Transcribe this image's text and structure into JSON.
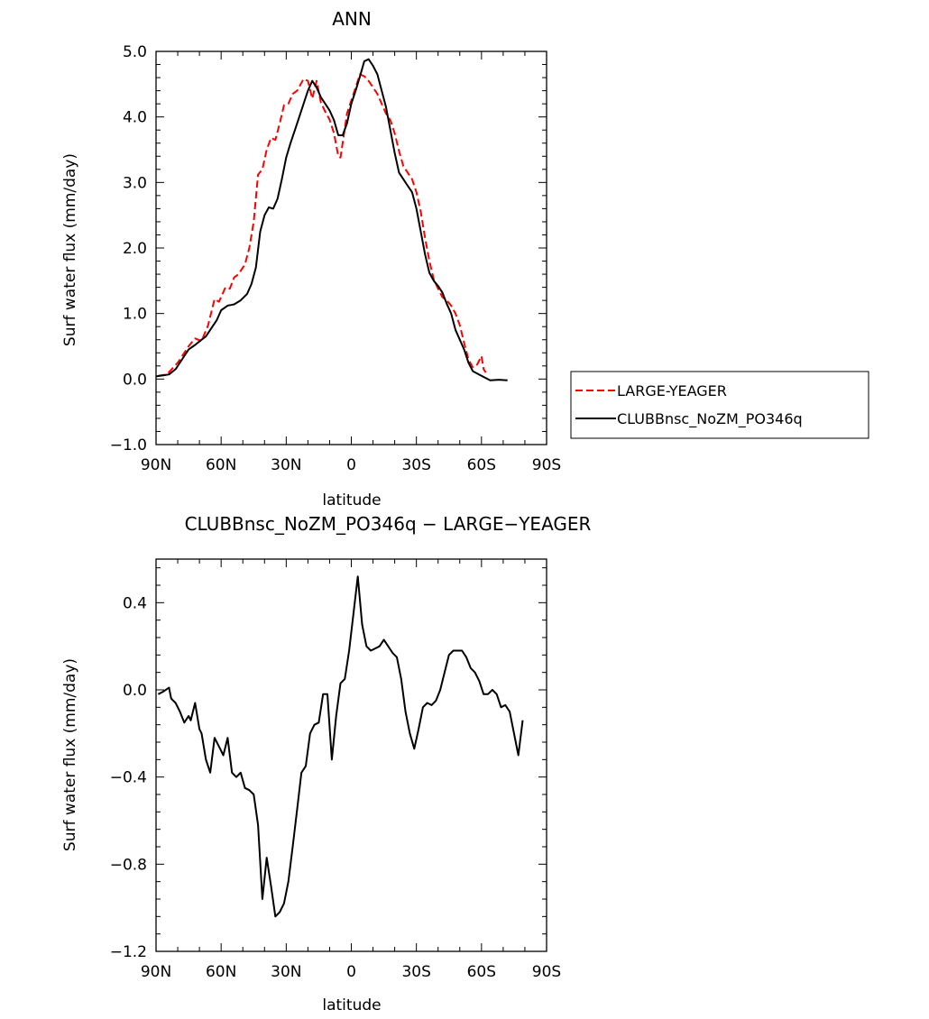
{
  "chart_data": [
    {
      "type": "line",
      "title": "ANN",
      "xlabel": "latitude",
      "ylabel": "Surf water flux (mm/day)",
      "xlim": [
        90,
        -90
      ],
      "ylim": [
        -1.0,
        5.0
      ],
      "xticks": [
        {
          "v": 90,
          "label": "90N"
        },
        {
          "v": 60,
          "label": "60N"
        },
        {
          "v": 30,
          "label": "30N"
        },
        {
          "v": 0,
          "label": "0"
        },
        {
          "v": -30,
          "label": "30S"
        },
        {
          "v": -60,
          "label": "60S"
        },
        {
          "v": -90,
          "label": "90S"
        }
      ],
      "yticks": [
        {
          "v": 5.0,
          "label": "5.0"
        },
        {
          "v": 4.0,
          "label": "4.0"
        },
        {
          "v": 3.0,
          "label": "3.0"
        },
        {
          "v": 2.0,
          "label": "2.0"
        },
        {
          "v": 1.0,
          "label": "1.0"
        },
        {
          "v": 0.0,
          "label": "0.0"
        },
        {
          "v": -1.0,
          "label": "−1.0"
        }
      ],
      "legend_position": "right",
      "series": [
        {
          "name": "LARGE-YEAGER",
          "color": "#ff0000",
          "dash": "dashed",
          "points": [
            [
              89,
              0.05
            ],
            [
              85,
              0.07
            ],
            [
              80,
              0.25
            ],
            [
              75,
              0.5
            ],
            [
              72,
              0.62
            ],
            [
              69,
              0.58
            ],
            [
              66,
              0.82
            ],
            [
              63,
              1.22
            ],
            [
              61,
              1.18
            ],
            [
              58,
              1.4
            ],
            [
              56,
              1.38
            ],
            [
              54,
              1.55
            ],
            [
              52,
              1.6
            ],
            [
              49,
              1.75
            ],
            [
              47,
              2.0
            ],
            [
              45,
              2.4
            ],
            [
              43,
              3.12
            ],
            [
              41,
              3.2
            ],
            [
              39,
              3.5
            ],
            [
              37,
              3.68
            ],
            [
              35,
              3.65
            ],
            [
              33,
              3.9
            ],
            [
              31,
              4.18
            ],
            [
              29,
              4.2
            ],
            [
              27,
              4.35
            ],
            [
              25,
              4.4
            ],
            [
              22,
              4.58
            ],
            [
              20,
              4.55
            ],
            [
              18,
              4.28
            ],
            [
              16,
              4.55
            ],
            [
              14,
              4.22
            ],
            [
              12,
              4.08
            ],
            [
              10,
              3.96
            ],
            [
              8,
              3.75
            ],
            [
              6,
              3.4
            ],
            [
              5,
              3.38
            ],
            [
              4,
              3.6
            ],
            [
              2,
              4.05
            ],
            [
              0,
              4.25
            ],
            [
              -2,
              4.45
            ],
            [
              -4,
              4.65
            ],
            [
              -6,
              4.62
            ],
            [
              -8,
              4.55
            ],
            [
              -10,
              4.45
            ],
            [
              -12,
              4.35
            ],
            [
              -14,
              4.2
            ],
            [
              -16,
              4.05
            ],
            [
              -18,
              3.95
            ],
            [
              -20,
              3.75
            ],
            [
              -22,
              3.48
            ],
            [
              -24,
              3.25
            ],
            [
              -26,
              3.15
            ],
            [
              -28,
              3.05
            ],
            [
              -30,
              2.85
            ],
            [
              -32,
              2.55
            ],
            [
              -34,
              2.15
            ],
            [
              -36,
              1.8
            ],
            [
              -38,
              1.52
            ],
            [
              -40,
              1.38
            ],
            [
              -42,
              1.25
            ],
            [
              -44,
              1.2
            ],
            [
              -46,
              1.12
            ],
            [
              -48,
              1.0
            ],
            [
              -50,
              0.82
            ],
            [
              -52,
              0.55
            ],
            [
              -54,
              0.3
            ],
            [
              -56,
              0.18
            ],
            [
              -58,
              0.22
            ],
            [
              -60,
              0.35
            ],
            [
              -61,
              0.15
            ],
            [
              -62,
              0.1
            ]
          ]
        },
        {
          "name": "CLUBBnsc_NoZM_PO346q",
          "color": "#000000",
          "dash": "solid",
          "points": [
            [
              90,
              0.04
            ],
            [
              86,
              0.06
            ],
            [
              84,
              0.07
            ],
            [
              81,
              0.15
            ],
            [
              78,
              0.3
            ],
            [
              75,
              0.45
            ],
            [
              72,
              0.52
            ],
            [
              69,
              0.6
            ],
            [
              67,
              0.65
            ],
            [
              64,
              0.8
            ],
            [
              62,
              0.9
            ],
            [
              60,
              1.05
            ],
            [
              57,
              1.12
            ],
            [
              54,
              1.14
            ],
            [
              51,
              1.2
            ],
            [
              48,
              1.3
            ],
            [
              46,
              1.45
            ],
            [
              44,
              1.7
            ],
            [
              42,
              2.25
            ],
            [
              40,
              2.5
            ],
            [
              38,
              2.62
            ],
            [
              36,
              2.6
            ],
            [
              34,
              2.75
            ],
            [
              32,
              3.05
            ],
            [
              30,
              3.38
            ],
            [
              28,
              3.6
            ],
            [
              26,
              3.8
            ],
            [
              24,
              4.0
            ],
            [
              22,
              4.2
            ],
            [
              20,
              4.4
            ],
            [
              18,
              4.55
            ],
            [
              16,
              4.45
            ],
            [
              14,
              4.3
            ],
            [
              12,
              4.2
            ],
            [
              10,
              4.1
            ],
            [
              8,
              3.95
            ],
            [
              6,
              3.72
            ],
            [
              4,
              3.72
            ],
            [
              2,
              3.9
            ],
            [
              0,
              4.2
            ],
            [
              -2,
              4.4
            ],
            [
              -4,
              4.62
            ],
            [
              -6,
              4.85
            ],
            [
              -8,
              4.88
            ],
            [
              -10,
              4.78
            ],
            [
              -12,
              4.65
            ],
            [
              -14,
              4.4
            ],
            [
              -16,
              4.15
            ],
            [
              -18,
              3.8
            ],
            [
              -20,
              3.45
            ],
            [
              -22,
              3.15
            ],
            [
              -24,
              3.05
            ],
            [
              -26,
              2.95
            ],
            [
              -28,
              2.85
            ],
            [
              -30,
              2.6
            ],
            [
              -32,
              2.25
            ],
            [
              -34,
              1.9
            ],
            [
              -36,
              1.62
            ],
            [
              -38,
              1.5
            ],
            [
              -40,
              1.42
            ],
            [
              -42,
              1.32
            ],
            [
              -44,
              1.15
            ],
            [
              -46,
              1.0
            ],
            [
              -48,
              0.75
            ],
            [
              -50,
              0.6
            ],
            [
              -52,
              0.45
            ],
            [
              -54,
              0.25
            ],
            [
              -56,
              0.12
            ],
            [
              -60,
              0.05
            ],
            [
              -64,
              -0.02
            ],
            [
              -68,
              -0.01
            ],
            [
              -72,
              -0.02
            ]
          ]
        }
      ]
    },
    {
      "type": "line",
      "title": "CLUBBnsc_NoZM_PO346q − LARGE−YEAGER",
      "xlabel": "latitude",
      "ylabel": "Surf water flux (mm/day)",
      "xlim": [
        90,
        -90
      ],
      "ylim": [
        -1.2,
        0.6
      ],
      "xticks": [
        {
          "v": 90,
          "label": "90N"
        },
        {
          "v": 60,
          "label": "60N"
        },
        {
          "v": 30,
          "label": "30N"
        },
        {
          "v": 0,
          "label": "0"
        },
        {
          "v": -30,
          "label": "30S"
        },
        {
          "v": -60,
          "label": "60S"
        },
        {
          "v": -90,
          "label": "90S"
        }
      ],
      "yticks": [
        {
          "v": 0.4,
          "label": "0.4"
        },
        {
          "v": 0.0,
          "label": "0.0"
        },
        {
          "v": -0.4,
          "label": "−0.4"
        },
        {
          "v": -0.8,
          "label": "−0.8"
        },
        {
          "v": -1.2,
          "label": "−1.2"
        }
      ],
      "series": [
        {
          "color": "#000000",
          "dash": "solid",
          "points": [
            [
              89,
              -0.02
            ],
            [
              87,
              -0.01
            ],
            [
              84,
              0.01
            ],
            [
              83,
              -0.04
            ],
            [
              81,
              -0.06
            ],
            [
              79,
              -0.1
            ],
            [
              77,
              -0.15
            ],
            [
              75,
              -0.12
            ],
            [
              74,
              -0.14
            ],
            [
              72,
              -0.06
            ],
            [
              70,
              -0.18
            ],
            [
              69,
              -0.2
            ],
            [
              67,
              -0.32
            ],
            [
              65,
              -0.38
            ],
            [
              63,
              -0.22
            ],
            [
              61,
              -0.26
            ],
            [
              59,
              -0.3
            ],
            [
              57,
              -0.22
            ],
            [
              55,
              -0.38
            ],
            [
              53,
              -0.4
            ],
            [
              51,
              -0.38
            ],
            [
              49,
              -0.45
            ],
            [
              47,
              -0.46
            ],
            [
              45,
              -0.48
            ],
            [
              43,
              -0.62
            ],
            [
              41,
              -0.96
            ],
            [
              39,
              -0.77
            ],
            [
              37,
              -0.9
            ],
            [
              35,
              -1.04
            ],
            [
              33,
              -1.02
            ],
            [
              31,
              -0.98
            ],
            [
              29,
              -0.88
            ],
            [
              27,
              -0.72
            ],
            [
              25,
              -0.55
            ],
            [
              23,
              -0.38
            ],
            [
              21,
              -0.35
            ],
            [
              19,
              -0.2
            ],
            [
              17,
              -0.16
            ],
            [
              15,
              -0.15
            ],
            [
              13,
              -0.02
            ],
            [
              11,
              -0.02
            ],
            [
              9,
              -0.32
            ],
            [
              7,
              -0.12
            ],
            [
              5,
              0.03
            ],
            [
              3,
              0.05
            ],
            [
              1,
              0.18
            ],
            [
              -1,
              0.35
            ],
            [
              -3,
              0.52
            ],
            [
              -5,
              0.3
            ],
            [
              -7,
              0.2
            ],
            [
              -9,
              0.18
            ],
            [
              -11,
              0.19
            ],
            [
              -13,
              0.2
            ],
            [
              -15,
              0.23
            ],
            [
              -17,
              0.2
            ],
            [
              -19,
              0.17
            ],
            [
              -21,
              0.15
            ],
            [
              -23,
              0.05
            ],
            [
              -25,
              -0.1
            ],
            [
              -27,
              -0.2
            ],
            [
              -29,
              -0.27
            ],
            [
              -31,
              -0.18
            ],
            [
              -33,
              -0.08
            ],
            [
              -35,
              -0.06
            ],
            [
              -37,
              -0.07
            ],
            [
              -39,
              -0.05
            ],
            [
              -41,
              0.0
            ],
            [
              -43,
              0.08
            ],
            [
              -45,
              0.16
            ],
            [
              -47,
              0.18
            ],
            [
              -49,
              0.18
            ],
            [
              -51,
              0.18
            ],
            [
              -53,
              0.15
            ],
            [
              -55,
              0.1
            ],
            [
              -57,
              0.08
            ],
            [
              -59,
              0.04
            ],
            [
              -61,
              -0.02
            ],
            [
              -63,
              -0.02
            ],
            [
              -65,
              0.0
            ],
            [
              -67,
              -0.02
            ],
            [
              -69,
              -0.08
            ],
            [
              -71,
              -0.07
            ],
            [
              -73,
              -0.1
            ],
            [
              -75,
              -0.2
            ],
            [
              -77,
              -0.3
            ],
            [
              -79,
              -0.14
            ]
          ]
        }
      ]
    }
  ]
}
